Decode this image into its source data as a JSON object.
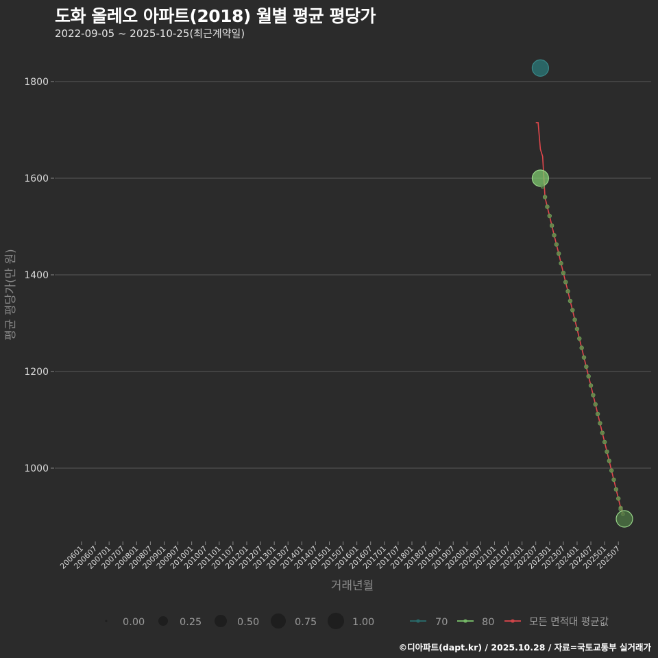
{
  "header": {
    "title": "도화 올레오 아파트(2018) 월별 평균 평당가",
    "subtitle": "2022-09-05 ~ 2025-10-25(최근계약일)"
  },
  "caption": "©디아파트(dapt.kr) / 2025.10.28 / 자료=국토교통부 실거래가",
  "colors": {
    "background": "#2b2b2b",
    "grid": "#5a5a5a",
    "area_70": "#2a7070",
    "area_80": "#7ec86e",
    "average": "#e0474c"
  },
  "chart_data": {
    "type": "line",
    "title": "도화 올레오 아파트(2018) 월별 평균 평당가",
    "subtitle": "2022-09-05 ~ 2025-10-25(최근계약일)",
    "xlabel": "거래년월",
    "ylabel": "평균 평당가(만 원)",
    "ylim": [
      850,
      1880
    ],
    "yticks": [
      1000,
      1200,
      1400,
      1600,
      1800
    ],
    "xticks": [
      "200601",
      "200607",
      "200701",
      "200707",
      "200801",
      "200807",
      "200901",
      "200907",
      "201001",
      "201007",
      "201101",
      "201107",
      "201201",
      "201207",
      "201301",
      "201307",
      "201401",
      "201407",
      "201501",
      "201507",
      "201601",
      "201607",
      "201701",
      "201707",
      "201801",
      "201807",
      "201901",
      "201907",
      "202001",
      "202007",
      "202101",
      "202107",
      "202201",
      "202207",
      "202301",
      "202307",
      "202401",
      "202407",
      "202501",
      "202507"
    ],
    "grid": "horizontal",
    "legend_position": "bottom",
    "size_legend": {
      "title": "",
      "values": [
        "0.00",
        "0.25",
        "0.50",
        "0.75",
        "1.00"
      ]
    },
    "color_legend": [
      "70",
      "80",
      "모든 면적대 평균값"
    ],
    "series": [
      {
        "name": "70",
        "color": "#2a7070",
        "points": [
          {
            "x": "202209",
            "y": 1828,
            "size": 1.0
          }
        ]
      },
      {
        "name": "80",
        "color": "#7ec86e",
        "points": [
          {
            "x": "202209",
            "y": 1600,
            "size": 1.0
          },
          {
            "x": "202210",
            "y": 1583,
            "size": 0.1
          },
          {
            "x": "202211",
            "y": 1561,
            "size": 0.1
          },
          {
            "x": "202212",
            "y": 1541,
            "size": 0.1
          },
          {
            "x": "202301",
            "y": 1522,
            "size": 0.1
          },
          {
            "x": "202302",
            "y": 1502,
            "size": 0.1
          },
          {
            "x": "202303",
            "y": 1482,
            "size": 0.1
          },
          {
            "x": "202304",
            "y": 1463,
            "size": 0.1
          },
          {
            "x": "202305",
            "y": 1444,
            "size": 0.1
          },
          {
            "x": "202306",
            "y": 1424,
            "size": 0.1
          },
          {
            "x": "202307",
            "y": 1404,
            "size": 0.1
          },
          {
            "x": "202308",
            "y": 1385,
            "size": 0.1
          },
          {
            "x": "202309",
            "y": 1366,
            "size": 0.1
          },
          {
            "x": "202310",
            "y": 1346,
            "size": 0.1
          },
          {
            "x": "202311",
            "y": 1327,
            "size": 0.1
          },
          {
            "x": "202312",
            "y": 1307,
            "size": 0.1
          },
          {
            "x": "202401",
            "y": 1288,
            "size": 0.1
          },
          {
            "x": "202402",
            "y": 1268,
            "size": 0.1
          },
          {
            "x": "202403",
            "y": 1249,
            "size": 0.1
          },
          {
            "x": "202404",
            "y": 1229,
            "size": 0.1
          },
          {
            "x": "202405",
            "y": 1210,
            "size": 0.1
          },
          {
            "x": "202406",
            "y": 1190,
            "size": 0.1
          },
          {
            "x": "202407",
            "y": 1171,
            "size": 0.1
          },
          {
            "x": "202408",
            "y": 1151,
            "size": 0.1
          },
          {
            "x": "202409",
            "y": 1132,
            "size": 0.1
          },
          {
            "x": "202410",
            "y": 1112,
            "size": 0.1
          },
          {
            "x": "202411",
            "y": 1093,
            "size": 0.1
          },
          {
            "x": "202412",
            "y": 1073,
            "size": 0.1
          },
          {
            "x": "202501",
            "y": 1054,
            "size": 0.1
          },
          {
            "x": "202502",
            "y": 1034,
            "size": 0.1
          },
          {
            "x": "202503",
            "y": 1015,
            "size": 0.1
          },
          {
            "x": "202504",
            "y": 995,
            "size": 0.1
          },
          {
            "x": "202505",
            "y": 976,
            "size": 0.1
          },
          {
            "x": "202506",
            "y": 956,
            "size": 0.1
          },
          {
            "x": "202507",
            "y": 937,
            "size": 0.1
          },
          {
            "x": "202508",
            "y": 915,
            "size": 0.1
          },
          {
            "x": "202510",
            "y": 895,
            "size": 1.0
          }
        ]
      },
      {
        "name": "모든 면적대 평균값",
        "color": "#e0474c",
        "points": [
          {
            "x": "202207",
            "y": 1715
          },
          {
            "x": "202208",
            "y": 1715
          },
          {
            "x": "202209",
            "y": 1660
          },
          {
            "x": "202210",
            "y": 1645
          },
          {
            "x": "202211",
            "y": 1561
          },
          {
            "x": "202212",
            "y": 1541
          },
          {
            "x": "202301",
            "y": 1522
          },
          {
            "x": "202302",
            "y": 1502
          },
          {
            "x": "202303",
            "y": 1482
          },
          {
            "x": "202304",
            "y": 1463
          },
          {
            "x": "202305",
            "y": 1444
          },
          {
            "x": "202306",
            "y": 1424
          },
          {
            "x": "202307",
            "y": 1404
          },
          {
            "x": "202308",
            "y": 1385
          },
          {
            "x": "202309",
            "y": 1366
          },
          {
            "x": "202310",
            "y": 1346
          },
          {
            "x": "202311",
            "y": 1327
          },
          {
            "x": "202312",
            "y": 1307
          },
          {
            "x": "202401",
            "y": 1288
          },
          {
            "x": "202402",
            "y": 1268
          },
          {
            "x": "202403",
            "y": 1249
          },
          {
            "x": "202404",
            "y": 1229
          },
          {
            "x": "202405",
            "y": 1210
          },
          {
            "x": "202406",
            "y": 1190
          },
          {
            "x": "202407",
            "y": 1171
          },
          {
            "x": "202408",
            "y": 1151
          },
          {
            "x": "202409",
            "y": 1132
          },
          {
            "x": "202410",
            "y": 1112
          },
          {
            "x": "202411",
            "y": 1093
          },
          {
            "x": "202412",
            "y": 1073
          },
          {
            "x": "202501",
            "y": 1054
          },
          {
            "x": "202502",
            "y": 1034
          },
          {
            "x": "202503",
            "y": 1015
          },
          {
            "x": "202504",
            "y": 995
          },
          {
            "x": "202505",
            "y": 976
          },
          {
            "x": "202506",
            "y": 956
          },
          {
            "x": "202507",
            "y": 937
          },
          {
            "x": "202508",
            "y": 918
          },
          {
            "x": "202509",
            "y": 905
          }
        ]
      }
    ]
  }
}
